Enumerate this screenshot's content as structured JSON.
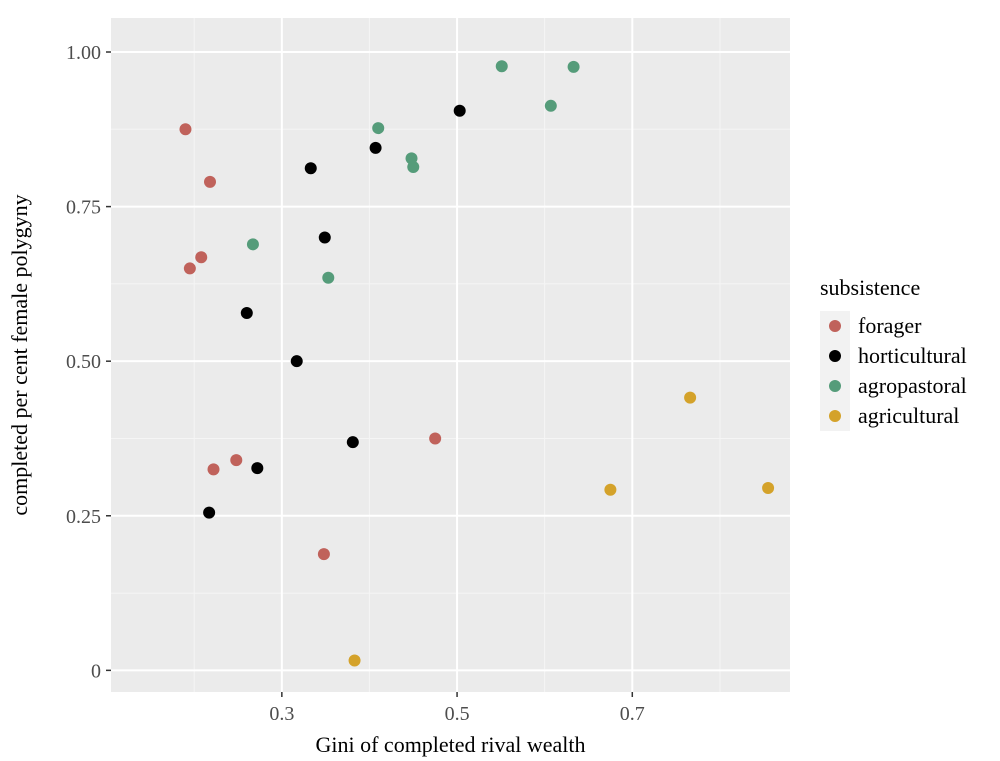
{
  "chart_data": {
    "type": "scatter",
    "xlabel": "Gini of completed rival wealth",
    "ylabel": "completed per cent female polygyny",
    "xlim": [
      0.105,
      0.88
    ],
    "ylim": [
      -0.035,
      1.055
    ],
    "x_ticks": [
      0.3,
      0.5,
      0.7
    ],
    "x_tick_labels": [
      "0.3",
      "0.5",
      "0.7"
    ],
    "x_minor_ticks": [
      0.2,
      0.4,
      0.6,
      0.8
    ],
    "y_ticks": [
      0,
      0.25,
      0.5,
      0.75,
      1.0
    ],
    "y_tick_labels": [
      "0",
      "0.25",
      "0.50",
      "0.75",
      "1.00"
    ],
    "y_minor_ticks": [
      0.125,
      0.375,
      0.625,
      0.875
    ],
    "grid": true,
    "legend": {
      "title": "subsistence",
      "position": "right"
    },
    "series": [
      {
        "name": "forager",
        "color": "#c0625b",
        "points": [
          [
            0.19,
            0.875
          ],
          [
            0.218,
            0.79
          ],
          [
            0.208,
            0.668
          ],
          [
            0.195,
            0.65
          ],
          [
            0.222,
            0.325
          ],
          [
            0.248,
            0.34
          ],
          [
            0.348,
            0.188
          ],
          [
            0.475,
            0.375
          ]
        ]
      },
      {
        "name": "horticultural",
        "color": "#000000",
        "points": [
          [
            0.503,
            0.905
          ],
          [
            0.407,
            0.845
          ],
          [
            0.333,
            0.812
          ],
          [
            0.349,
            0.7
          ],
          [
            0.26,
            0.578
          ],
          [
            0.317,
            0.5
          ],
          [
            0.381,
            0.369
          ],
          [
            0.272,
            0.327
          ],
          [
            0.217,
            0.255
          ]
        ]
      },
      {
        "name": "agropastoral",
        "color": "#559c7a",
        "points": [
          [
            0.551,
            0.977
          ],
          [
            0.633,
            0.976
          ],
          [
            0.607,
            0.913
          ],
          [
            0.41,
            0.877
          ],
          [
            0.448,
            0.828
          ],
          [
            0.45,
            0.814
          ],
          [
            0.267,
            0.689
          ],
          [
            0.353,
            0.635
          ]
        ]
      },
      {
        "name": "agricultural",
        "color": "#d4a22a",
        "points": [
          [
            0.766,
            0.441
          ],
          [
            0.675,
            0.292
          ],
          [
            0.855,
            0.295
          ],
          [
            0.383,
            0.016
          ]
        ]
      }
    ]
  }
}
